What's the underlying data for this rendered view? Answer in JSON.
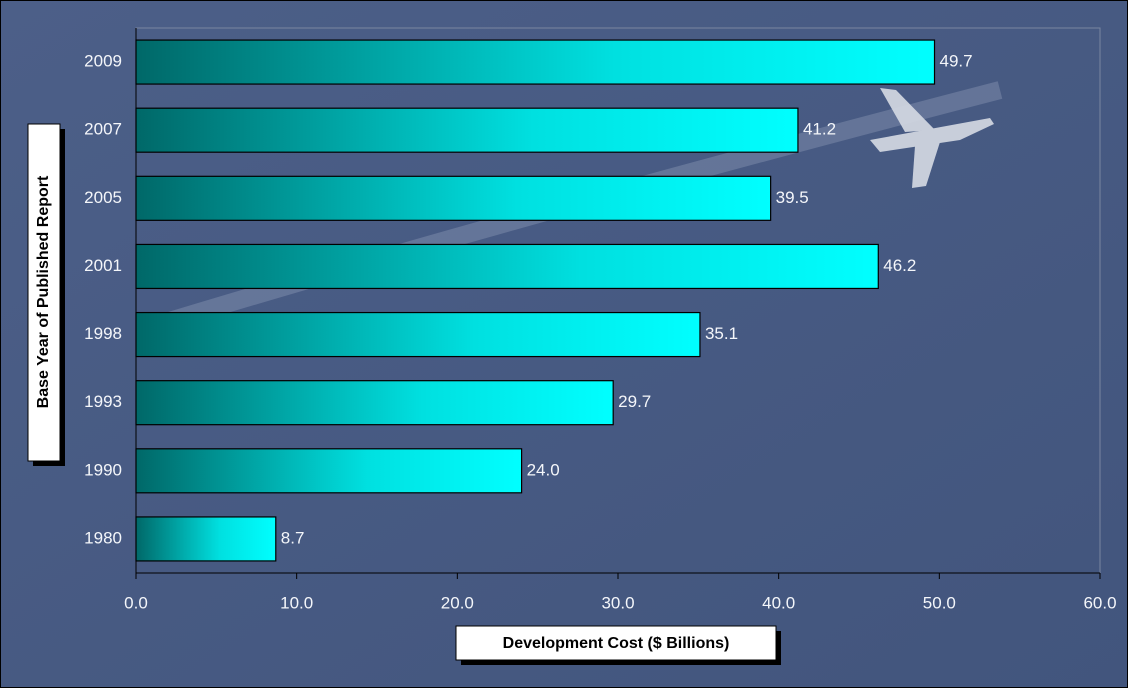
{
  "chart_data": {
    "type": "bar",
    "orientation": "horizontal",
    "y_label": "Base Year of Published Report",
    "x_label": "Development Cost ($ Billions)",
    "categories": [
      "2009",
      "2007",
      "2005",
      "2001",
      "1998",
      "1993",
      "1990",
      "1980"
    ],
    "values": [
      49.7,
      41.2,
      39.5,
      46.2,
      35.1,
      29.7,
      24.0,
      8.7
    ],
    "value_labels": [
      "49.7",
      "41.2",
      "39.5",
      "46.2",
      "35.1",
      "29.7",
      "24.0",
      "8.7"
    ],
    "color": "#00ffff",
    "xlim": [
      0,
      60
    ],
    "xticks": [
      {
        "value": 0,
        "label": "0.0"
      },
      {
        "value": 10,
        "label": "10.0"
      },
      {
        "value": 20,
        "label": "20.0"
      },
      {
        "value": 30,
        "label": "30.0"
      },
      {
        "value": 40,
        "label": "40.0"
      },
      {
        "value": 50,
        "label": "50.0"
      },
      {
        "value": 60,
        "label": "60.0"
      }
    ],
    "grid": false
  }
}
